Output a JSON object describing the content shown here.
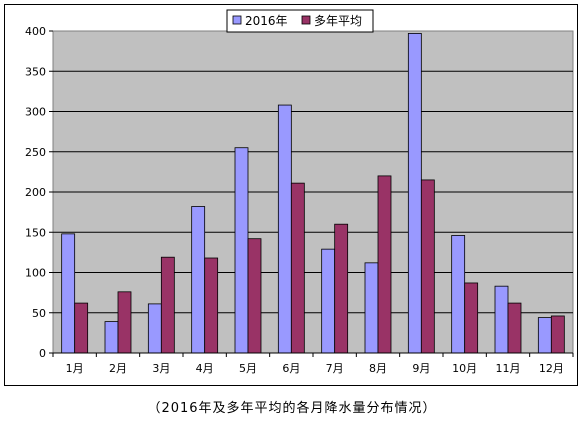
{
  "chart_data": {
    "type": "bar",
    "categories": [
      "1月",
      "2月",
      "3月",
      "4月",
      "5月",
      "6月",
      "7月",
      "8月",
      "9月",
      "10月",
      "11月",
      "12月"
    ],
    "series": [
      {
        "name": "2016年",
        "color": "#9999ff",
        "values": [
          148,
          39,
          61,
          182,
          255,
          308,
          129,
          112,
          397,
          146,
          83,
          44
        ]
      },
      {
        "name": "多年平均",
        "color": "#993366",
        "values": [
          62,
          76,
          119,
          118,
          142,
          211,
          160,
          220,
          215,
          87,
          62,
          46
        ]
      }
    ],
    "ylim": [
      0,
      400
    ],
    "yticks": [
      "0",
      "50",
      "100",
      "150",
      "200",
      "250",
      "300",
      "350",
      "400"
    ],
    "grid": true,
    "plot_background": "#c0c0c0",
    "legend_position": "top"
  },
  "caption": "（2016年及多年平均的各月降水量分布情况）"
}
